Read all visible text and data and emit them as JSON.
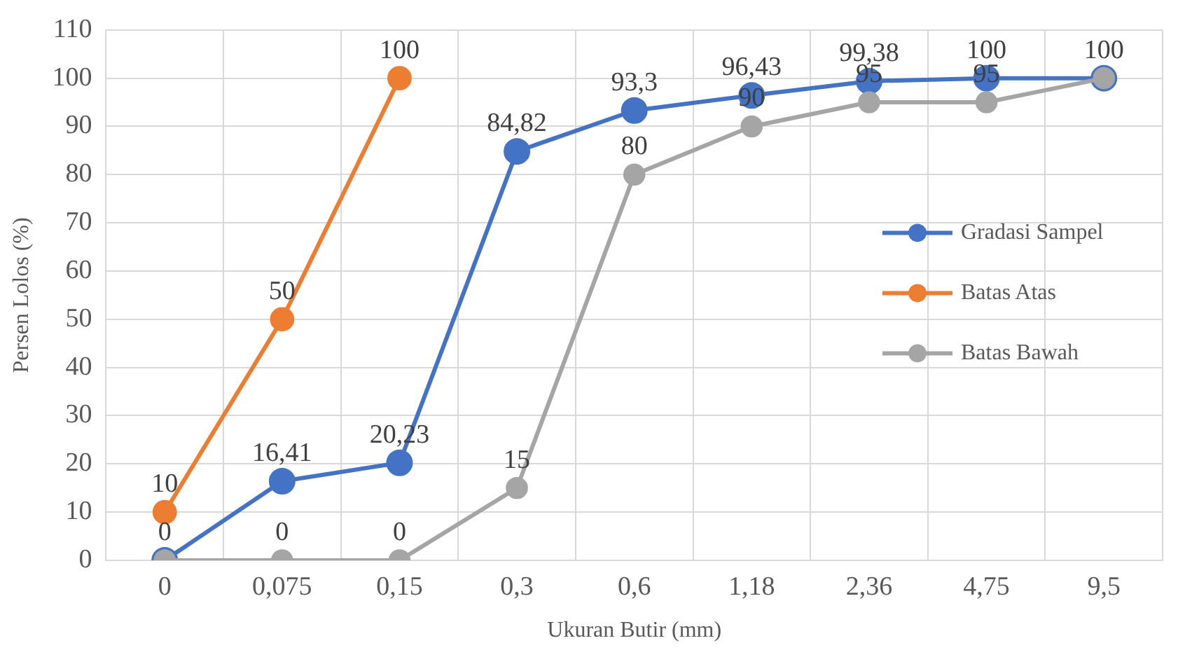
{
  "chart_data": {
    "type": "line",
    "xlabel": "Ukuran Butir (mm)",
    "ylabel": "Persen Lolos (%)",
    "categories": [
      "0",
      "0,075",
      "0,15",
      "0,3",
      "0,6",
      "1,18",
      "2,36",
      "4,75",
      "9,5"
    ],
    "ylim": [
      0,
      110
    ],
    "yticks": [
      0,
      10,
      20,
      30,
      40,
      50,
      60,
      70,
      80,
      90,
      100,
      110
    ],
    "grid": true,
    "legend": "right",
    "marker": "circle",
    "line_style": "solid",
    "series": [
      {
        "name": "Gradasi Sampel",
        "color": "#4472c4",
        "values": [
          0,
          16.41,
          20.23,
          84.82,
          93.3,
          96.43,
          99.38,
          100,
          100
        ],
        "value_labels": [
          null,
          "16,41",
          "20,23",
          "84,82",
          "93,3",
          "96,43",
          "99,38",
          "100",
          "100"
        ]
      },
      {
        "name": "Batas Atas",
        "color": "#ed7d31",
        "values": [
          10,
          50,
          100,
          null,
          null,
          null,
          null,
          null,
          null
        ],
        "value_labels": [
          "10",
          "50",
          "100",
          null,
          null,
          null,
          null,
          null,
          null
        ]
      },
      {
        "name": "Batas Bawah",
        "color": "#a5a5a5",
        "values": [
          0,
          0,
          0,
          15,
          80,
          90,
          95,
          95,
          100
        ],
        "value_labels": [
          "0",
          "0",
          "0",
          "15",
          "80",
          "90",
          "95",
          "95",
          null
        ]
      }
    ]
  }
}
